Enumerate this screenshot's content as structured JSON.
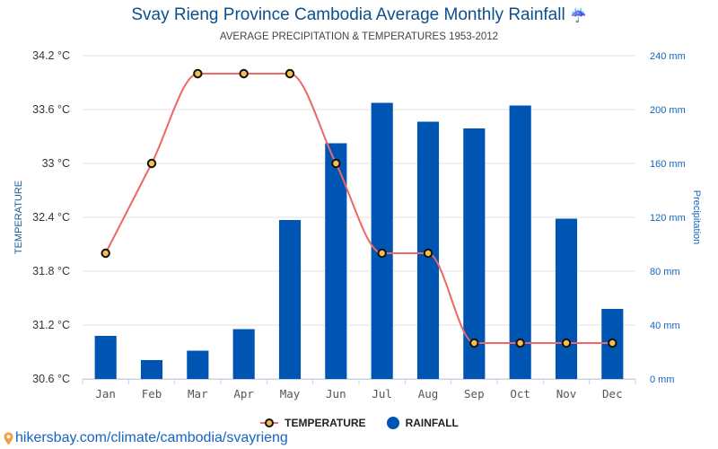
{
  "header": {
    "title": "Svay Rieng Province Cambodia Average Monthly Rainfall",
    "title_icon": "umbrella-rain-icon",
    "subtitle": "AVERAGE PRECIPITATION & TEMPERATURES 1953-2012"
  },
  "legend": {
    "temperature": "TEMPERATURE",
    "rainfall": "RAINFALL"
  },
  "footer": {
    "icon": "map-pin-icon",
    "link": "hikersbay.com/climate/cambodia/svayrieng"
  },
  "colors": {
    "bar": "#0055b3",
    "line": "#ee6666",
    "marker_fill": "#f8bd4f",
    "marker_stroke": "#111111",
    "title": "#0d4f8b",
    "right_axis": "#1565c0"
  },
  "chart_data": {
    "type": "bar+line",
    "title": "Svay Rieng Province Cambodia Average Monthly Rainfall",
    "subtitle": "AVERAGE PRECIPITATION & TEMPERATURES 1953-2012",
    "categories": [
      "Jan",
      "Feb",
      "Mar",
      "Apr",
      "May",
      "Jun",
      "Jul",
      "Aug",
      "Sep",
      "Oct",
      "Nov",
      "Dec"
    ],
    "series": [
      {
        "name": "TEMPERATURE",
        "type": "line",
        "axis": "left",
        "unit": "°C",
        "values": [
          32,
          33,
          34,
          34,
          34,
          33,
          32,
          32,
          31,
          31,
          31,
          31
        ]
      },
      {
        "name": "RAINFALL",
        "type": "bar",
        "axis": "right",
        "unit": "mm",
        "values": [
          32,
          14,
          21,
          37,
          118,
          175,
          205,
          191,
          186,
          203,
          119,
          52
        ]
      }
    ],
    "left_axis": {
      "label": "TEMPERATURE",
      "range": [
        30.6,
        34.2
      ],
      "ticks": [
        "34.2 °C",
        "33.6 °C",
        "33 °C",
        "32.4 °C",
        "31.8 °C",
        "31.2 °C",
        "30.6 °C"
      ],
      "tick_values": [
        34.2,
        33.6,
        33,
        32.4,
        31.8,
        31.2,
        30.6
      ]
    },
    "right_axis": {
      "label": "Precipitation",
      "range": [
        0,
        240
      ],
      "ticks": [
        "240 mm",
        "200 mm",
        "160 mm",
        "120 mm",
        "80 mm",
        "40 mm",
        "0 mm"
      ],
      "tick_values": [
        240,
        200,
        160,
        120,
        80,
        40,
        0
      ]
    },
    "grid": true,
    "legend_position": "bottom-center"
  }
}
